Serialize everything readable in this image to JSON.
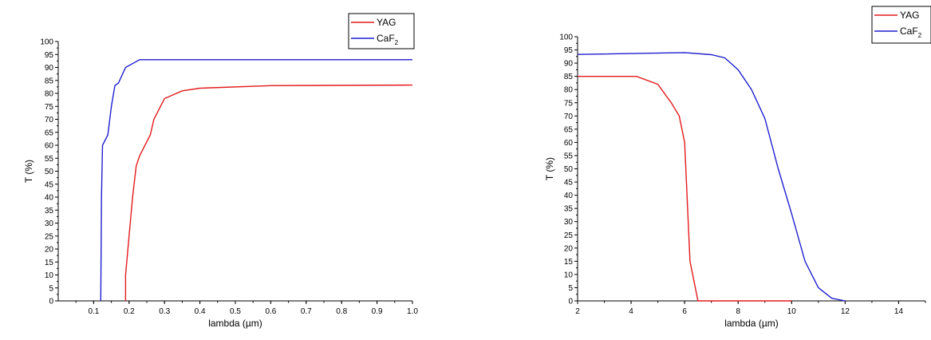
{
  "chart_data": [
    {
      "type": "line",
      "xlabel": "lambda (µm)",
      "ylabel": "T (%)",
      "xlim": [
        0,
        1.0
      ],
      "ylim": [
        0,
        100
      ],
      "x_ticks": [
        "0.1",
        "0.2",
        "0.3",
        "0.4",
        "0.5",
        "0.6",
        "0.7",
        "0.8",
        "0.9",
        "1.0"
      ],
      "y_ticks": [
        "0",
        "5",
        "10",
        "15",
        "20",
        "25",
        "30",
        "35",
        "40",
        "45",
        "50",
        "55",
        "60",
        "65",
        "70",
        "75",
        "80",
        "85",
        "90",
        "95",
        "100"
      ],
      "grid": false,
      "legend_position": "top-right",
      "series": [
        {
          "name": "YAG",
          "color": "#e31a1c",
          "points": [
            [
              0.19,
              0
            ],
            [
              0.19,
              10
            ],
            [
              0.21,
              40
            ],
            [
              0.22,
              52
            ],
            [
              0.23,
              56
            ],
            [
              0.26,
              64
            ],
            [
              0.27,
              70
            ],
            [
              0.3,
              78
            ],
            [
              0.35,
              81
            ],
            [
              0.4,
              82
            ],
            [
              0.6,
              83
            ],
            [
              1.0,
              83.2
            ]
          ]
        },
        {
          "name": "CaF",
          "name_sub": "2",
          "color": "#1f1fcf",
          "points": [
            [
              0.12,
              0
            ],
            [
              0.122,
              40
            ],
            [
              0.125,
              60
            ],
            [
              0.14,
              64
            ],
            [
              0.15,
              75
            ],
            [
              0.16,
              83
            ],
            [
              0.17,
              84
            ],
            [
              0.19,
              90
            ],
            [
              0.23,
              93
            ],
            [
              1.0,
              93
            ]
          ]
        }
      ]
    },
    {
      "type": "line",
      "xlabel": "lambda (µm)",
      "ylabel": "T (%)",
      "xlim": [
        2,
        15
      ],
      "ylim": [
        0,
        100
      ],
      "x_ticks": [
        "2",
        "4",
        "6",
        "8",
        "10",
        "12",
        "14"
      ],
      "y_ticks": [
        "0",
        "5",
        "10",
        "15",
        "20",
        "25",
        "30",
        "35",
        "40",
        "45",
        "50",
        "55",
        "60",
        "65",
        "70",
        "75",
        "80",
        "85",
        "90",
        "95",
        "100"
      ],
      "grid": false,
      "legend_position": "top-right",
      "series": [
        {
          "name": "YAG",
          "color": "#e31a1c",
          "points": [
            [
              2,
              85
            ],
            [
              4.2,
              85
            ],
            [
              5,
              82
            ],
            [
              5.5,
              75
            ],
            [
              5.8,
              70
            ],
            [
              6.0,
              60
            ],
            [
              6.2,
              15
            ],
            [
              6.5,
              0
            ],
            [
              10,
              0
            ]
          ]
        },
        {
          "name": "CaF",
          "name_sub": "2",
          "color": "#1f1fcf",
          "points": [
            [
              2,
              93.3
            ],
            [
              6,
              94
            ],
            [
              7,
              93.2
            ],
            [
              7.5,
              92
            ],
            [
              8,
              87.5
            ],
            [
              8.5,
              80
            ],
            [
              9,
              69
            ],
            [
              9.5,
              50
            ],
            [
              10,
              33
            ],
            [
              10.5,
              15
            ],
            [
              11,
              5
            ],
            [
              11.5,
              1
            ],
            [
              12,
              0
            ]
          ]
        }
      ]
    }
  ]
}
